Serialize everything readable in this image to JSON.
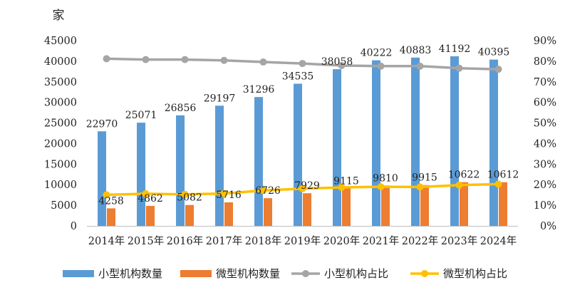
{
  "chart_data": {
    "type": "bar",
    "categories": [
      "2014年",
      "2015年",
      "2016年",
      "2017年",
      "2018年",
      "2019年",
      "2020年",
      "2021年",
      "2022年",
      "2023年",
      "2024年"
    ],
    "series": [
      {
        "name": "小型机构数量",
        "kind": "bar",
        "axis": "left",
        "color": "#5B9BD5",
        "values": [
          22970,
          25071,
          26856,
          29197,
          31296,
          34535,
          38058,
          40222,
          40883,
          41192,
          40395
        ]
      },
      {
        "name": "微型机构数量",
        "kind": "bar",
        "axis": "left",
        "color": "#ED7D31",
        "values": [
          4258,
          4862,
          5082,
          5716,
          6726,
          7929,
          9115,
          9810,
          9915,
          10622,
          10612
        ]
      },
      {
        "name": "小型机构占比",
        "kind": "line",
        "axis": "right",
        "color": "#A5A5A5",
        "values": [
          81.2,
          80.8,
          80.8,
          80.4,
          79.6,
          78.9,
          77.9,
          77.6,
          77.6,
          76.6,
          76.1
        ]
      },
      {
        "name": "微型机构占比",
        "kind": "line",
        "axis": "right",
        "color": "#FFC000",
        "values": [
          15.1,
          15.6,
          15.3,
          15.7,
          17.2,
          18.1,
          18.7,
          19.0,
          18.9,
          19.8,
          20.3
        ]
      }
    ],
    "y_left": {
      "unit": "家",
      "ylim": [
        0,
        45000
      ],
      "ticks": [
        "0",
        "5000",
        "10000",
        "15000",
        "20000",
        "25000",
        "30000",
        "35000",
        "40000",
        "45000"
      ]
    },
    "y_right": {
      "ylim": [
        0,
        90
      ],
      "ticks": [
        "0%",
        "10%",
        "20%",
        "30%",
        "40%",
        "50%",
        "60%",
        "70%",
        "80%",
        "90%"
      ]
    },
    "grid": false,
    "legend_position": "bottom"
  }
}
